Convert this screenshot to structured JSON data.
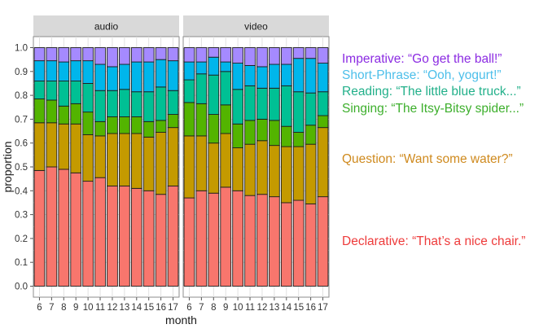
{
  "chart_data": {
    "type": "bar",
    "stacked": true,
    "panels": [
      "audio",
      "video"
    ],
    "categories": [
      "6",
      "7",
      "8",
      "9",
      "10",
      "11",
      "12",
      "13",
      "14",
      "15",
      "16",
      "17"
    ],
    "xlabel": "month",
    "ylabel": "proportion",
    "ylim": [
      0,
      1
    ],
    "yticks": [
      "0.0",
      "0.1",
      "0.2",
      "0.3",
      "0.4",
      "0.5",
      "0.6",
      "0.7",
      "0.8",
      "0.9",
      "1.0"
    ],
    "grid": true,
    "legend_position": "right",
    "series": [
      {
        "name": "Declarative: “That’s a nice chair.”",
        "color": "#F8766D",
        "values": {
          "audio": [
            0.485,
            0.5,
            0.49,
            0.475,
            0.44,
            0.455,
            0.42,
            0.42,
            0.41,
            0.4,
            0.385,
            0.42
          ],
          "video": [
            0.37,
            0.4,
            0.39,
            0.415,
            0.4,
            0.38,
            0.385,
            0.375,
            0.35,
            0.36,
            0.345,
            0.375
          ]
        }
      },
      {
        "name": "Question: “Want some water?”",
        "color": "#C49A00",
        "values": {
          "audio": [
            0.2,
            0.185,
            0.19,
            0.205,
            0.195,
            0.175,
            0.22,
            0.22,
            0.23,
            0.225,
            0.26,
            0.245
          ],
          "video": [
            0.26,
            0.23,
            0.21,
            0.225,
            0.18,
            0.215,
            0.225,
            0.215,
            0.235,
            0.225,
            0.25,
            0.29
          ]
        }
      },
      {
        "name": "Singing: “The Itsy-Bitsy spider...”",
        "color": "#53B400",
        "values": {
          "audio": [
            0.1,
            0.095,
            0.075,
            0.085,
            0.095,
            0.06,
            0.07,
            0.07,
            0.07,
            0.065,
            0.05,
            0.055
          ],
          "video": [
            0.14,
            0.135,
            0.12,
            0.12,
            0.1,
            0.1,
            0.09,
            0.105,
            0.085,
            0.06,
            0.08,
            0.05
          ]
        }
      },
      {
        "name": "Reading: “The little blue truck...”",
        "color": "#00C094",
        "values": {
          "audio": [
            0.075,
            0.08,
            0.105,
            0.095,
            0.12,
            0.13,
            0.11,
            0.115,
            0.105,
            0.125,
            0.14,
            0.1
          ],
          "video": [
            0.095,
            0.125,
            0.165,
            0.14,
            0.145,
            0.145,
            0.13,
            0.135,
            0.17,
            0.17,
            0.135,
            0.1
          ]
        }
      },
      {
        "name": "Short-Phrase: “Ooh, yogurt!”",
        "color": "#00B6EB",
        "values": {
          "audio": [
            0.085,
            0.085,
            0.08,
            0.085,
            0.095,
            0.11,
            0.1,
            0.105,
            0.125,
            0.125,
            0.115,
            0.125
          ],
          "video": [
            0.075,
            0.05,
            0.075,
            0.04,
            0.11,
            0.085,
            0.09,
            0.1,
            0.09,
            0.14,
            0.145,
            0.12
          ]
        }
      },
      {
        "name": "Imperative: “Go get the ball!”",
        "color": "#A58AFF",
        "values": {
          "audio": [
            0.055,
            0.055,
            0.06,
            0.055,
            0.055,
            0.07,
            0.08,
            0.07,
            0.06,
            0.06,
            0.05,
            0.055
          ],
          "video": [
            0.06,
            0.06,
            0.04,
            0.06,
            0.065,
            0.075,
            0.08,
            0.07,
            0.07,
            0.045,
            0.045,
            0.065
          ]
        }
      }
    ],
    "legend_colors": [
      "#8B2BE2",
      "#4DBFEA",
      "#22B08A",
      "#3DAF2C",
      "#CF8A1E",
      "#EE3B3B"
    ]
  }
}
